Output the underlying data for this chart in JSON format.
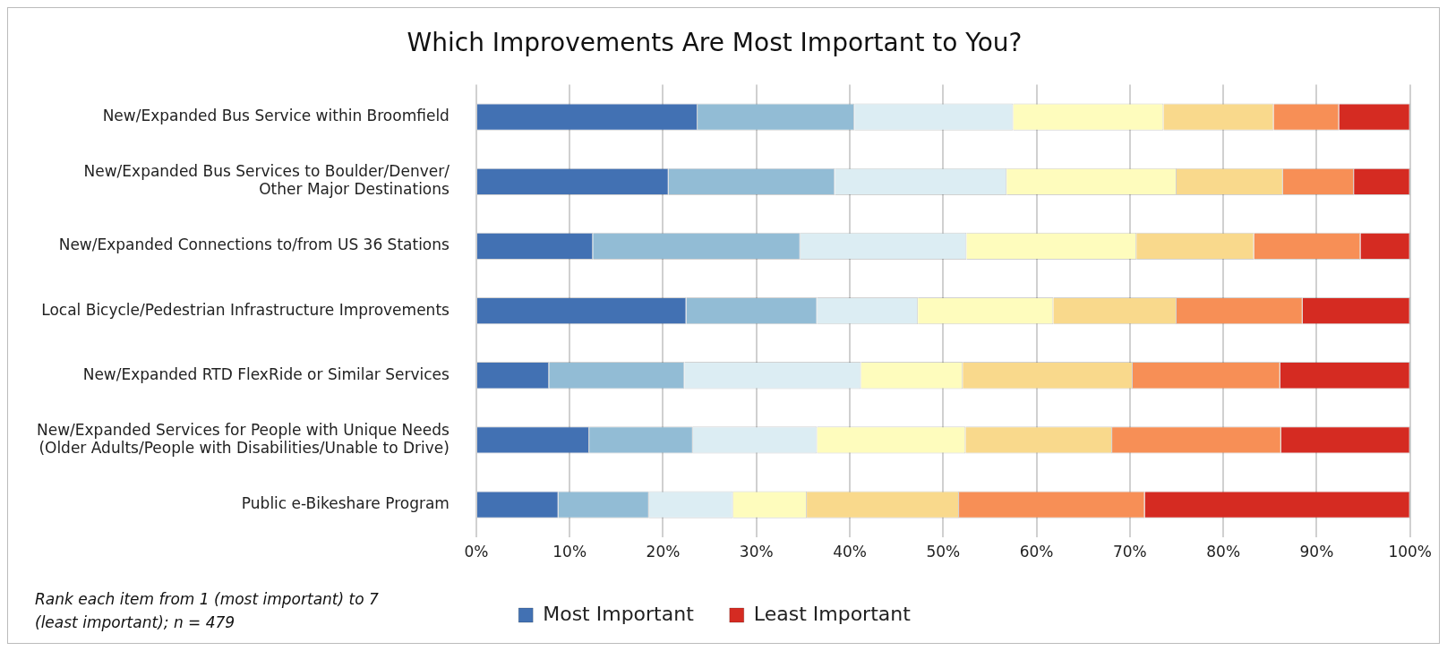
{
  "chart_data": {
    "type": "bar",
    "orientation": "horizontal",
    "stacked": true,
    "title": "Which Improvements Are Most Important to You?",
    "categories": [
      "New/Expanded Bus Service within Broomfield",
      "New/Expanded Bus Services to Boulder/Denver/\nOther Major Destinations",
      "New/Expanded Connections to/from US 36 Stations",
      "Local Bicycle/Pedestrian Infrastructure Improvements",
      "New/Expanded RTD FlexRide or Similar Services",
      "New/Expanded Services for People with Unique Needs\n(Older Adults/People with Disabilities/Unable to Drive)",
      "Public e-Bikeshare Program"
    ],
    "series": [
      {
        "name": "Most Important",
        "color": "#4271b3",
        "values": [
          23.7,
          20.6,
          12.5,
          22.5,
          7.8,
          12.1,
          8.8
        ]
      },
      {
        "color": "#92bcd5",
        "values": [
          16.8,
          17.8,
          22.2,
          14.0,
          14.5,
          11.1,
          9.7
        ]
      },
      {
        "color": "#dcedf3",
        "values": [
          17.0,
          18.4,
          17.8,
          10.8,
          18.9,
          13.3,
          9.0
        ]
      },
      {
        "color": "#fefcbd",
        "values": [
          16.1,
          18.2,
          18.2,
          14.5,
          10.9,
          15.9,
          7.9
        ]
      },
      {
        "color": "#f9d98c",
        "values": [
          11.8,
          11.4,
          12.6,
          13.2,
          18.2,
          15.7,
          16.3
        ]
      },
      {
        "color": "#f78f56",
        "values": [
          7.0,
          7.6,
          11.4,
          13.5,
          15.8,
          18.1,
          19.9
        ]
      },
      {
        "name": "Least Important",
        "color": "#d52b22",
        "values": [
          7.6,
          6.0,
          5.3,
          11.5,
          13.9,
          13.8,
          28.4
        ]
      }
    ],
    "xlim": [
      0,
      100
    ],
    "xticks": [
      {
        "value": 0,
        "label": "0%"
      },
      {
        "value": 10,
        "label": "10%"
      },
      {
        "value": 20,
        "label": "20%"
      },
      {
        "value": 30,
        "label": "30%"
      },
      {
        "value": 40,
        "label": "40%"
      },
      {
        "value": 50,
        "label": "50%"
      },
      {
        "value": 60,
        "label": "60%"
      },
      {
        "value": 70,
        "label": "70%"
      },
      {
        "value": 80,
        "label": "80%"
      },
      {
        "value": 90,
        "label": "90%"
      },
      {
        "value": 100,
        "label": "100%"
      }
    ],
    "grid": "x",
    "legend": "bottom",
    "annotations": [
      "Rank each item from 1 (most important) to 7 (least important); n = 479"
    ]
  }
}
